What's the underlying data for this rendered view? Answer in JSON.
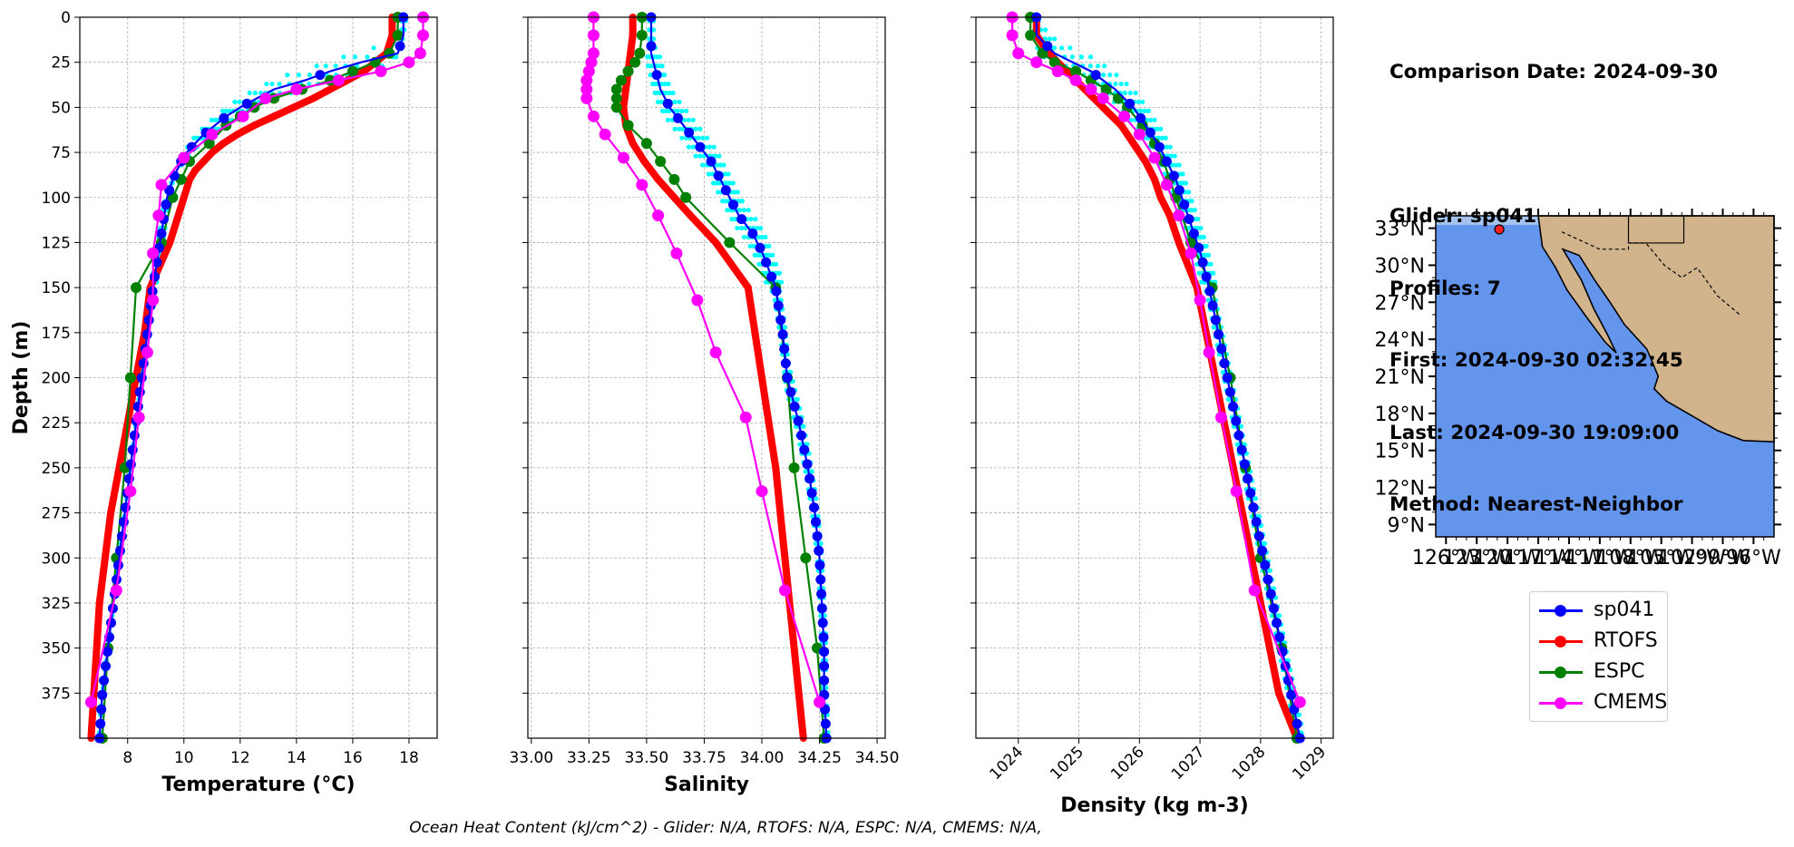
{
  "info": {
    "comparison_date": "Comparison Date: 2024-09-30",
    "glider": "Glider: sp041",
    "profiles": "Profiles: 7",
    "first": "First: 2024-09-30 02:32:45",
    "last": "Last: 2024-09-30 19:09:00",
    "method": "Method: Nearest-Neighbor"
  },
  "footer": "Ocean Heat Content (kJ/cm^2) - Glider: N/A,  RTOFS: N/A,  ESPC: N/A,  CMEMS: N/A,",
  "colors": {
    "glider": "#0000ff",
    "glider_cloud": "#00ffff",
    "rtofs": "#ff0000",
    "espc": "#008000",
    "cmems": "#ff00ff",
    "ocean": "#6495ed",
    "land": "#d2b48c",
    "shelf": "#a4c4ef"
  },
  "legend": [
    {
      "label": "sp041",
      "color": "#0000ff"
    },
    {
      "label": "RTOFS",
      "color": "#ff0000"
    },
    {
      "label": "ESPC",
      "color": "#008000"
    },
    {
      "label": "CMEMS",
      "color": "#ff00ff"
    }
  ],
  "chart_data": [
    {
      "type": "line",
      "xlabel": "Temperature (°C)",
      "ylabel": "Depth (m)",
      "xlim": [
        6.3,
        19.0
      ],
      "ylim": [
        400,
        0
      ],
      "xticks": [
        8,
        10,
        12,
        14,
        16,
        18
      ],
      "yticks": [
        0,
        25,
        50,
        75,
        100,
        125,
        150,
        175,
        200,
        225,
        250,
        275,
        300,
        325,
        350,
        375
      ],
      "grid": true,
      "series": [
        {
          "name": "sp041",
          "depth": [
            0,
            10,
            20,
            25,
            30,
            35,
            40,
            45,
            50,
            55,
            60,
            65,
            70,
            75,
            80,
            90,
            100,
            110,
            120,
            130,
            150,
            175,
            200,
            225,
            250,
            275,
            300,
            325,
            350,
            375,
            400
          ],
          "values": [
            17.8,
            17.8,
            17.6,
            16.3,
            15.2,
            14.3,
            13.2,
            12.6,
            12.0,
            11.5,
            11.1,
            10.7,
            10.4,
            10.1,
            9.9,
            9.6,
            9.4,
            9.3,
            9.2,
            9.1,
            8.9,
            8.7,
            8.5,
            8.3,
            8.1,
            7.9,
            7.7,
            7.5,
            7.3,
            7.1,
            7.0
          ]
        },
        {
          "name": "RTOFS",
          "depth": [
            0,
            10,
            20,
            25,
            30,
            35,
            40,
            45,
            50,
            55,
            60,
            65,
            70,
            75,
            80,
            85,
            90,
            100,
            110,
            125,
            150,
            175,
            200,
            225,
            250,
            275,
            300,
            325,
            350,
            375,
            400
          ],
          "values": [
            17.4,
            17.4,
            17.2,
            16.8,
            16.4,
            15.8,
            15.2,
            14.6,
            13.9,
            13.2,
            12.5,
            11.9,
            11.4,
            11.0,
            10.7,
            10.4,
            10.2,
            10.0,
            9.8,
            9.5,
            8.8,
            8.6,
            8.3,
            8.0,
            7.7,
            7.4,
            7.2,
            7.0,
            6.9,
            6.8,
            6.7
          ]
        },
        {
          "name": "ESPC",
          "depth": [
            0,
            10,
            20,
            25,
            30,
            35,
            40,
            45,
            50,
            55,
            60,
            70,
            80,
            90,
            100,
            125,
            150,
            200,
            250,
            300,
            350,
            400
          ],
          "values": [
            17.6,
            17.6,
            17.3,
            16.8,
            16.0,
            15.2,
            14.2,
            13.2,
            12.5,
            12.0,
            11.5,
            10.9,
            10.2,
            9.9,
            9.6,
            9.2,
            8.3,
            8.1,
            7.9,
            7.6,
            7.3,
            7.1
          ]
        },
        {
          "name": "CMEMS",
          "depth": [
            0,
            10,
            20,
            25,
            30,
            35,
            40,
            45,
            55,
            65,
            78,
            93,
            110,
            131,
            157,
            186,
            222,
            263,
            318,
            380
          ],
          "values": [
            18.5,
            18.5,
            18.4,
            18.0,
            17.0,
            15.5,
            14.0,
            12.9,
            12.1,
            11.0,
            10.0,
            9.2,
            9.1,
            8.9,
            8.9,
            8.7,
            8.4,
            8.1,
            7.6,
            6.7
          ]
        }
      ]
    },
    {
      "type": "line",
      "xlabel": "Salinity",
      "ylim": [
        400,
        0
      ],
      "xlim": [
        32.985,
        34.535
      ],
      "xticks": [
        33.0,
        33.25,
        33.5,
        33.75,
        34.0,
        34.25,
        34.5
      ],
      "grid": true,
      "series": [
        {
          "name": "sp041",
          "depth": [
            0,
            10,
            20,
            30,
            40,
            50,
            60,
            70,
            80,
            90,
            100,
            110,
            120,
            130,
            150,
            175,
            200,
            225,
            250,
            275,
            300,
            325,
            350,
            375,
            400
          ],
          "values": [
            33.52,
            33.52,
            33.52,
            33.54,
            33.56,
            33.6,
            33.66,
            33.72,
            33.78,
            33.82,
            33.86,
            33.9,
            33.96,
            34.0,
            34.06,
            34.09,
            34.11,
            34.16,
            34.2,
            34.23,
            34.25,
            34.26,
            34.27,
            34.27,
            34.28
          ]
        },
        {
          "name": "RTOFS",
          "depth": [
            0,
            10,
            20,
            30,
            40,
            50,
            60,
            70,
            80,
            90,
            100,
            110,
            125,
            150,
            175,
            200,
            225,
            250,
            275,
            300,
            325,
            350,
            375,
            400
          ],
          "values": [
            33.44,
            33.44,
            33.43,
            33.42,
            33.41,
            33.4,
            33.41,
            33.44,
            33.49,
            33.55,
            33.62,
            33.69,
            33.8,
            33.94,
            33.97,
            34.0,
            34.03,
            34.06,
            34.08,
            34.1,
            34.12,
            34.14,
            34.16,
            34.18
          ]
        },
        {
          "name": "ESPC",
          "depth": [
            0,
            10,
            20,
            25,
            30,
            35,
            40,
            45,
            50,
            60,
            70,
            80,
            90,
            100,
            125,
            150,
            200,
            250,
            300,
            350,
            400
          ],
          "values": [
            33.48,
            33.48,
            33.47,
            33.45,
            33.42,
            33.39,
            33.37,
            33.37,
            33.37,
            33.42,
            33.5,
            33.56,
            33.62,
            33.67,
            33.86,
            34.06,
            34.11,
            34.14,
            34.19,
            34.24,
            34.27
          ]
        },
        {
          "name": "CMEMS",
          "depth": [
            0,
            10,
            20,
            25,
            30,
            35,
            40,
            45,
            55,
            65,
            78,
            93,
            110,
            131,
            157,
            186,
            222,
            263,
            318,
            380
          ],
          "values": [
            33.27,
            33.27,
            33.27,
            33.26,
            33.25,
            33.24,
            33.24,
            33.24,
            33.27,
            33.32,
            33.4,
            33.48,
            33.55,
            33.63,
            33.72,
            33.8,
            33.93,
            34.0,
            34.1,
            34.25
          ]
        }
      ]
    },
    {
      "type": "line",
      "xlabel": "Density (kg m-3)",
      "ylim": [
        400,
        0
      ],
      "xlim": [
        1023.3,
        1029.2
      ],
      "xticks": [
        1024,
        1025,
        1026,
        1027,
        1028,
        1029
      ],
      "grid": true,
      "series": [
        {
          "name": "sp041",
          "depth": [
            0,
            10,
            20,
            30,
            40,
            50,
            60,
            70,
            80,
            90,
            100,
            110,
            120,
            130,
            150,
            175,
            200,
            225,
            250,
            275,
            300,
            325,
            350,
            375,
            400
          ],
          "values": [
            1024.3,
            1024.3,
            1024.6,
            1025.2,
            1025.6,
            1025.9,
            1026.1,
            1026.3,
            1026.45,
            1026.6,
            1026.7,
            1026.8,
            1026.9,
            1027.0,
            1027.15,
            1027.3,
            1027.45,
            1027.6,
            1027.75,
            1027.9,
            1028.05,
            1028.2,
            1028.35,
            1028.5,
            1028.65
          ]
        },
        {
          "name": "RTOFS",
          "depth": [
            0,
            10,
            20,
            30,
            40,
            50,
            60,
            70,
            80,
            90,
            100,
            110,
            125,
            150,
            175,
            200,
            225,
            250,
            275,
            300,
            325,
            350,
            375,
            400
          ],
          "values": [
            1024.3,
            1024.3,
            1024.5,
            1024.8,
            1025.1,
            1025.4,
            1025.7,
            1025.9,
            1026.1,
            1026.25,
            1026.35,
            1026.5,
            1026.65,
            1026.95,
            1027.1,
            1027.25,
            1027.4,
            1027.55,
            1027.7,
            1027.85,
            1028.0,
            1028.15,
            1028.3,
            1028.6
          ]
        },
        {
          "name": "ESPC",
          "depth": [
            0,
            10,
            20,
            25,
            30,
            35,
            40,
            45,
            50,
            60,
            70,
            80,
            90,
            100,
            125,
            150,
            200,
            250,
            300,
            350,
            400
          ],
          "values": [
            1024.2,
            1024.2,
            1024.4,
            1024.6,
            1024.95,
            1025.2,
            1025.45,
            1025.65,
            1025.8,
            1026.05,
            1026.25,
            1026.4,
            1026.5,
            1026.6,
            1026.85,
            1027.2,
            1027.5,
            1027.75,
            1028.0,
            1028.35,
            1028.6
          ]
        },
        {
          "name": "CMEMS",
          "depth": [
            0,
            10,
            20,
            25,
            30,
            35,
            40,
            45,
            55,
            65,
            78,
            93,
            110,
            131,
            157,
            186,
            222,
            263,
            318,
            380
          ],
          "values": [
            1023.9,
            1023.9,
            1024.0,
            1024.3,
            1024.65,
            1024.95,
            1025.2,
            1025.4,
            1025.75,
            1026.0,
            1026.25,
            1026.45,
            1026.65,
            1026.85,
            1027.0,
            1027.15,
            1027.35,
            1027.6,
            1027.9,
            1028.65
          ]
        }
      ]
    }
  ],
  "map": {
    "lat_ticks": [
      "33°N",
      "30°N",
      "27°N",
      "24°N",
      "21°N",
      "18°N",
      "15°N",
      "12°N",
      "9°N"
    ],
    "lon_ticks": [
      "126°W",
      "123°W",
      "120°W",
      "117°W",
      "114°W",
      "111°W",
      "108°W",
      "105°W",
      "102°W",
      "99°W",
      "96°W"
    ],
    "lon_range": [
      -127,
      -94
    ],
    "lat_range": [
      8,
      34
    ],
    "glider_position": {
      "lon": -120.8,
      "lat": 32.9
    }
  }
}
